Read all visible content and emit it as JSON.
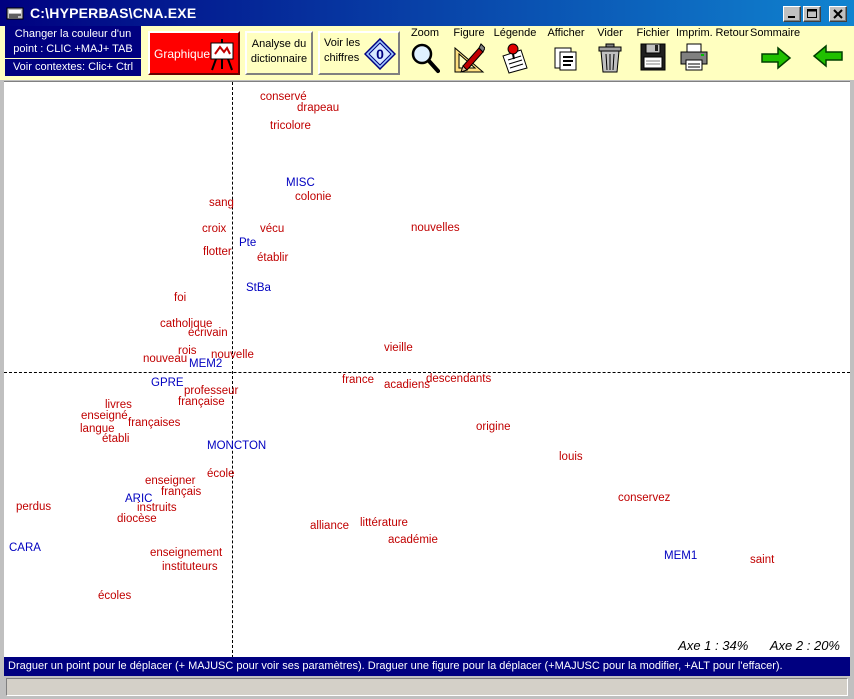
{
  "window": {
    "title": "C:\\HYPERBAS\\CNA.EXE"
  },
  "toolbar": {
    "hint_color": "Changer la couleur d'un point : CLIC +MAJ+ TAB",
    "hint_context": "Voir contextes: Clic+ Ctrl",
    "graphique_label": "Graphique",
    "analyse_label": "Analyse du dictionnaire",
    "chiffres_label": "Voir les chiffres",
    "tools": [
      {
        "label": "Zoom",
        "icon": "magnifier-icon"
      },
      {
        "label": "Figure",
        "icon": "pencil-ruler-icon"
      },
      {
        "label": "Légende",
        "icon": "pushpin-note-icon"
      },
      {
        "label": "Afficher",
        "icon": "document-display-icon"
      },
      {
        "label": "Vider",
        "icon": "trash-can-icon"
      },
      {
        "label": "Fichier",
        "icon": "floppy-disk-icon"
      },
      {
        "label": "Imprim.",
        "icon": "printer-icon"
      },
      {
        "label": "Retour",
        "icon": "arrow-right-icon"
      },
      {
        "label": "Sommaire",
        "icon": "arrow-left-icon"
      }
    ]
  },
  "plot": {
    "axes": {
      "axe1": "Axe 1 :  34%",
      "axe2": "Axe 2 :  20%"
    },
    "colors": {
      "word": "#c00000",
      "text": "#0000c0"
    },
    "points": [
      {
        "label": "conservé",
        "kind": "word"
      },
      {
        "label": "drapeau",
        "kind": "word"
      },
      {
        "label": "tricolore",
        "kind": "word"
      },
      {
        "label": "MISC",
        "kind": "text"
      },
      {
        "label": "colonie",
        "kind": "word"
      },
      {
        "label": "sang",
        "kind": "word"
      },
      {
        "label": "croix",
        "kind": "word"
      },
      {
        "label": "vécu",
        "kind": "word"
      },
      {
        "label": "Pte",
        "kind": "text"
      },
      {
        "label": "nouvelles",
        "kind": "word"
      },
      {
        "label": "flotter",
        "kind": "word"
      },
      {
        "label": "établir",
        "kind": "word"
      },
      {
        "label": "StBa",
        "kind": "text"
      },
      {
        "label": "foi",
        "kind": "word"
      },
      {
        "label": "catholique",
        "kind": "word"
      },
      {
        "label": "écrivain",
        "kind": "word"
      },
      {
        "label": "vieille",
        "kind": "word"
      },
      {
        "label": "rois",
        "kind": "word"
      },
      {
        "label": "nouveau",
        "kind": "word"
      },
      {
        "label": "nouvelle",
        "kind": "word"
      },
      {
        "label": "MEM2",
        "kind": "text"
      },
      {
        "label": "GPRE",
        "kind": "text"
      },
      {
        "label": "france",
        "kind": "word"
      },
      {
        "label": "acadiens",
        "kind": "word"
      },
      {
        "label": "descendants",
        "kind": "word"
      },
      {
        "label": "professeur",
        "kind": "word"
      },
      {
        "label": "française",
        "kind": "word"
      },
      {
        "label": "livres",
        "kind": "word"
      },
      {
        "label": "enseigné",
        "kind": "word"
      },
      {
        "label": "françaises",
        "kind": "word"
      },
      {
        "label": "langue",
        "kind": "word"
      },
      {
        "label": "origine",
        "kind": "word"
      },
      {
        "label": "établi",
        "kind": "word"
      },
      {
        "label": "MONCTON",
        "kind": "text"
      },
      {
        "label": "louis",
        "kind": "word"
      },
      {
        "label": "école",
        "kind": "word"
      },
      {
        "label": "enseigner",
        "kind": "word"
      },
      {
        "label": "français",
        "kind": "word"
      },
      {
        "label": "conservez",
        "kind": "word"
      },
      {
        "label": "ARIC",
        "kind": "text"
      },
      {
        "label": "perdus",
        "kind": "word"
      },
      {
        "label": "instruits",
        "kind": "word"
      },
      {
        "label": "diocèse",
        "kind": "word"
      },
      {
        "label": "littérature",
        "kind": "word"
      },
      {
        "label": "alliance",
        "kind": "word"
      },
      {
        "label": "académie",
        "kind": "word"
      },
      {
        "label": "CARA",
        "kind": "text"
      },
      {
        "label": "enseignement",
        "kind": "word"
      },
      {
        "label": "MEM1",
        "kind": "text"
      },
      {
        "label": "saint",
        "kind": "word"
      },
      {
        "label": "instituteurs",
        "kind": "word"
      },
      {
        "label": "écoles",
        "kind": "word"
      }
    ]
  },
  "status": {
    "message": "Draguer un point pour le déplacer (+ MAJUSC  pour voir ses paramètres). Draguer une figure pour la déplacer (+MAJUSC pour la modifier, +ALT pour l'effacer)."
  }
}
